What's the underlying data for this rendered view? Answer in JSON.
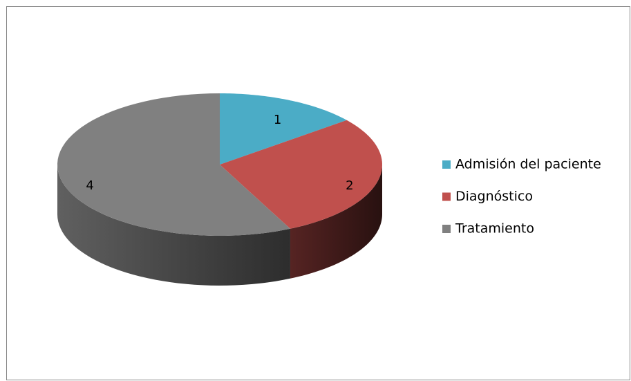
{
  "chart_data": {
    "type": "pie3d",
    "series": [
      {
        "name": "Admisión del paciente",
        "color": "#4bacc6"
      },
      {
        "name": "Diagnóstico",
        "color": "#c0504d"
      },
      {
        "name": "Tratamiento",
        "color": "#808080"
      }
    ],
    "values": [
      1,
      2,
      4
    ],
    "legend": "right"
  }
}
